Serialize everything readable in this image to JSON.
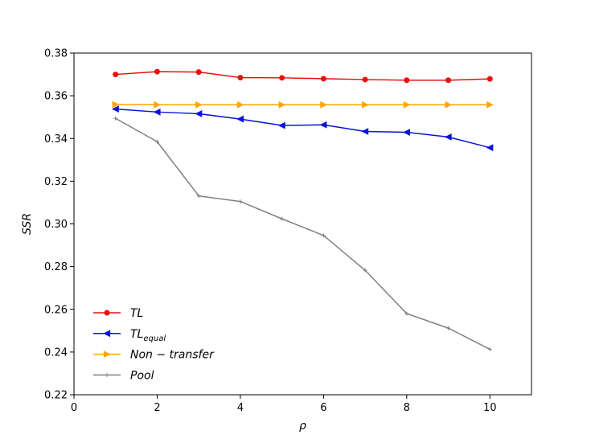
{
  "chart_data": {
    "type": "line",
    "xlabel": "ρ",
    "ylabel": "SSR",
    "xlim": [
      0,
      11
    ],
    "ylim": [
      0.22,
      0.38
    ],
    "xticks": [
      0,
      2,
      4,
      6,
      8,
      10
    ],
    "yticks": [
      0.22,
      0.24,
      0.26,
      0.28,
      0.3,
      0.32,
      0.34,
      0.36,
      0.38
    ],
    "xtick_labels": [
      "0",
      "2",
      "4",
      "6",
      "8",
      "10"
    ],
    "ytick_labels": [
      "0.22",
      "0.24",
      "0.26",
      "0.28",
      "0.30",
      "0.32",
      "0.34",
      "0.36",
      "0.38"
    ],
    "grid": false,
    "legend_position": "lower-left",
    "x": [
      1,
      2,
      3,
      4,
      5,
      6,
      7,
      8,
      9,
      10
    ],
    "series": [
      {
        "name": "TL",
        "name_sub": "",
        "color": "#e8110f",
        "marker": "circle",
        "values": [
          0.37,
          0.3713,
          0.3711,
          0.3685,
          0.3684,
          0.368,
          0.3676,
          0.3673,
          0.3673,
          0.3679
        ]
      },
      {
        "name": "TL",
        "name_sub": "equal",
        "color": "#0a14d6",
        "marker": "triangle-left",
        "values": [
          0.3538,
          0.3524,
          0.3516,
          0.3491,
          0.3461,
          0.3464,
          0.3433,
          0.3429,
          0.3407,
          0.3357
        ]
      },
      {
        "name": "Non − transfer",
        "name_sub": "",
        "color": "#ffa500",
        "marker": "triangle-right",
        "values": [
          0.3559,
          0.3558,
          0.3558,
          0.3558,
          0.3558,
          0.3558,
          0.3558,
          0.3558,
          0.3558,
          0.3558
        ]
      },
      {
        "name": "Pool",
        "name_sub": "",
        "color": "#808080",
        "marker": "plus",
        "values": [
          0.3494,
          0.3385,
          0.3131,
          0.3105,
          0.3024,
          0.2946,
          0.2783,
          0.258,
          0.2512,
          0.2413
        ]
      }
    ]
  }
}
